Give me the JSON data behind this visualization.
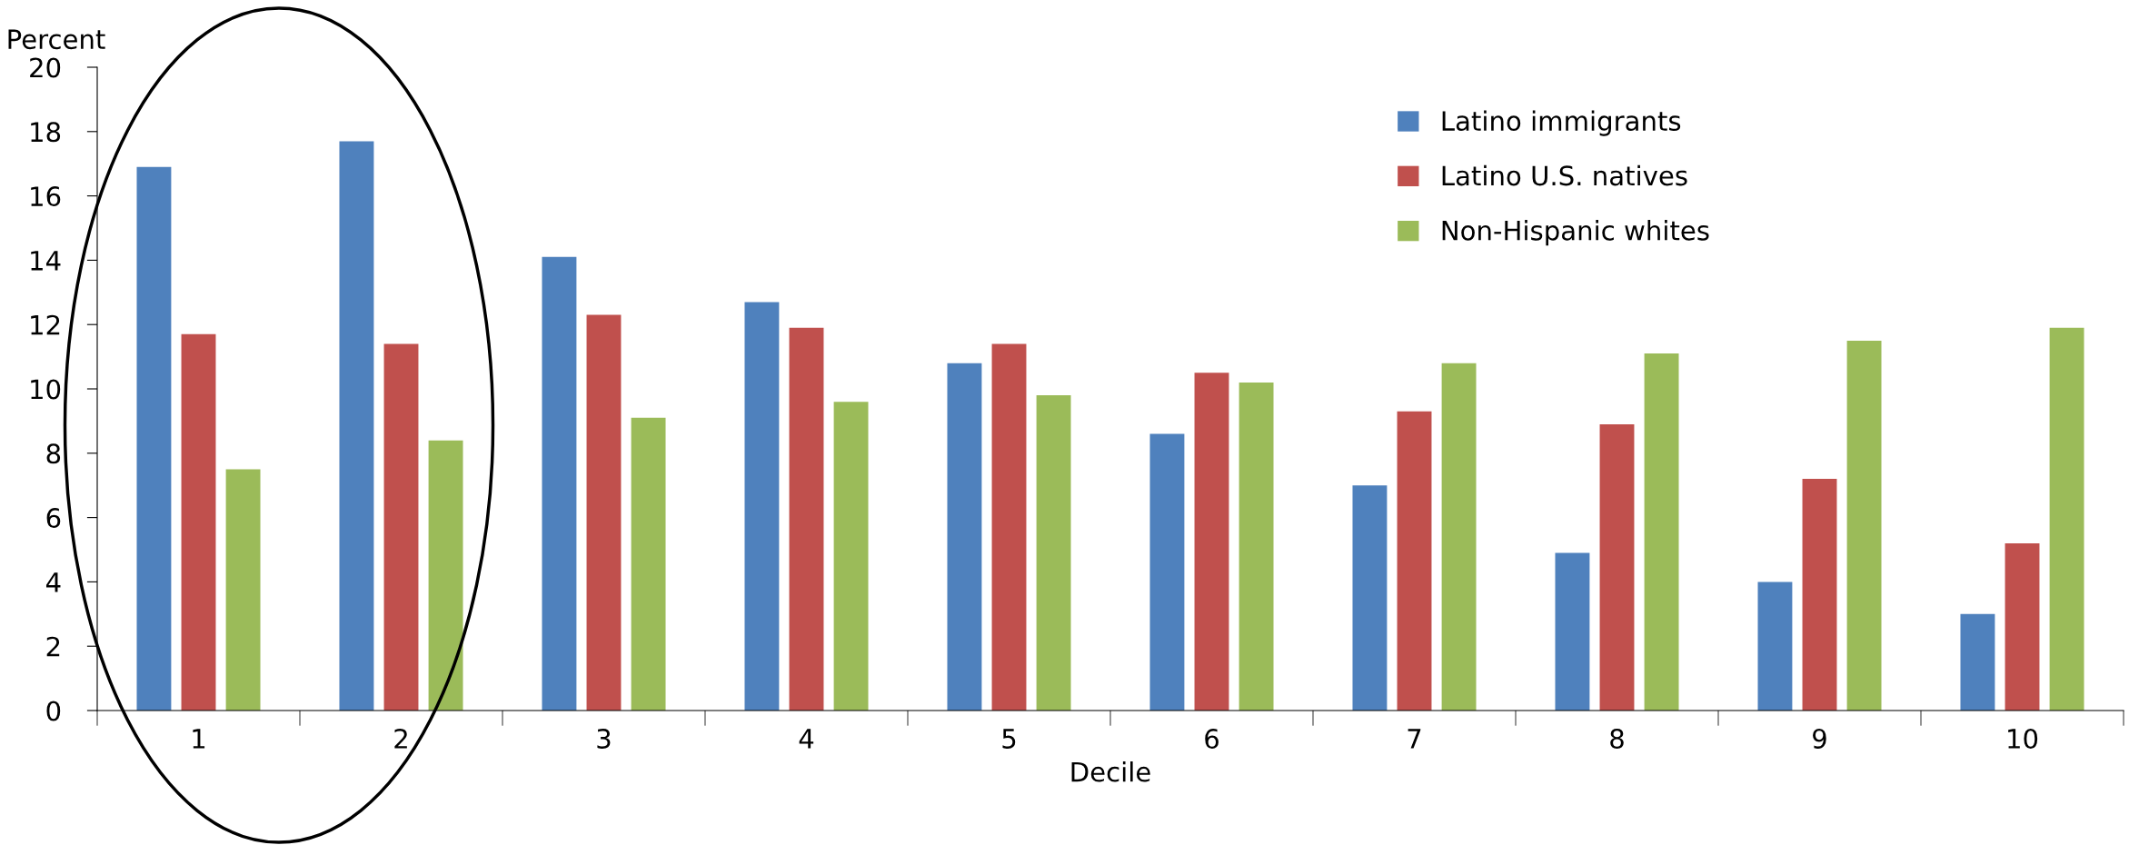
{
  "chart_data": {
    "type": "bar",
    "ylabel": "Percent",
    "xlabel": "Decile",
    "categories": [
      "1",
      "2",
      "3",
      "4",
      "5",
      "6",
      "7",
      "8",
      "9",
      "10"
    ],
    "series": [
      {
        "name": "Latino immigrants",
        "color": "#4f81bd",
        "values": [
          16.9,
          17.7,
          14.1,
          12.7,
          10.8,
          8.6,
          7.0,
          4.9,
          4.0,
          3.0
        ]
      },
      {
        "name": "Latino U.S. natives",
        "color": "#c0504d",
        "values": [
          11.7,
          11.4,
          12.3,
          11.9,
          11.4,
          10.5,
          9.3,
          8.9,
          7.2,
          5.2
        ]
      },
      {
        "name": "Non-Hispanic whites",
        "color": "#9bbb59",
        "values": [
          7.5,
          8.4,
          9.1,
          9.6,
          9.8,
          10.2,
          10.8,
          11.1,
          11.5,
          11.9
        ]
      }
    ],
    "ylim": [
      0,
      20
    ],
    "yticks": [
      0,
      2,
      4,
      6,
      8,
      10,
      12,
      14,
      16,
      18,
      20
    ],
    "grid": false,
    "legend": "top right"
  }
}
